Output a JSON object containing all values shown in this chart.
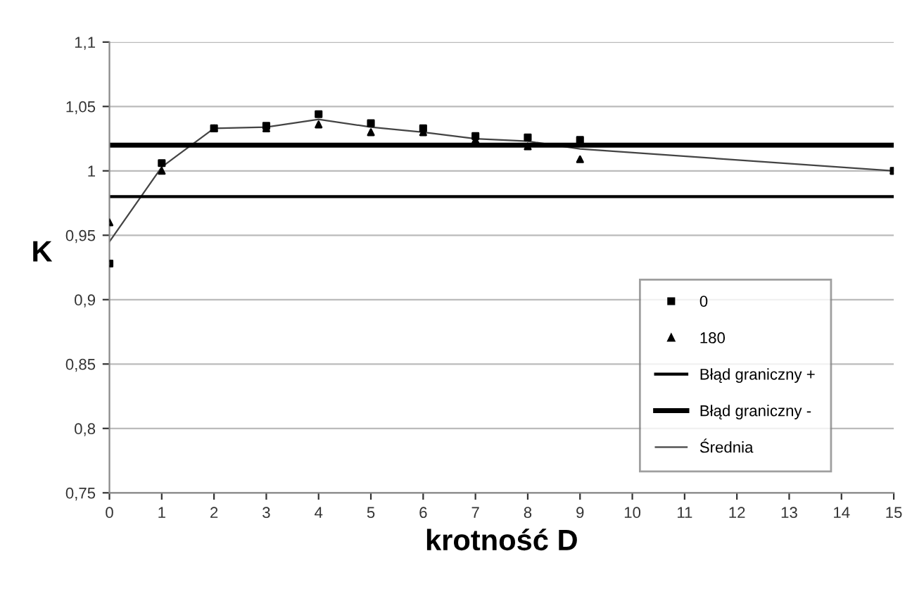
{
  "chart_data": {
    "type": "scatter",
    "xlabel": "krotność D",
    "ylabel": "K",
    "xlim": [
      0,
      15
    ],
    "xticks": [
      0,
      1,
      2,
      3,
      4,
      5,
      6,
      7,
      8,
      9,
      10,
      11,
      12,
      13,
      14,
      15
    ],
    "ylim": [
      0.75,
      1.1
    ],
    "yticks": [
      {
        "value": 0.75,
        "label": "0,75"
      },
      {
        "value": 0.8,
        "label": "0,8"
      },
      {
        "value": 0.85,
        "label": "0,85"
      },
      {
        "value": 0.9,
        "label": "0,9"
      },
      {
        "value": 0.95,
        "label": "0,95"
      },
      {
        "value": 1,
        "label": "1"
      },
      {
        "value": 1.05,
        "label": "1,05"
      },
      {
        "value": 1.1,
        "label": "1,1"
      }
    ],
    "grid": "y",
    "legend": "bottom right",
    "series": [
      {
        "name": "0",
        "marker": "square",
        "color": "#000000",
        "x": [
          0,
          1,
          2,
          3,
          4,
          5,
          6,
          7,
          8,
          9,
          15
        ],
        "values": [
          0.928,
          1.006,
          1.033,
          1.035,
          1.044,
          1.037,
          1.033,
          1.027,
          1.026,
          1.024,
          1.0
        ]
      },
      {
        "name": "180",
        "marker": "triangle",
        "color": "#000000",
        "x": [
          0,
          1,
          2,
          3,
          4,
          5,
          6,
          7,
          8,
          9,
          15
        ],
        "values": [
          0.96,
          1.0,
          1.033,
          1.033,
          1.036,
          1.03,
          1.03,
          1.024,
          1.019,
          1.009,
          1.0
        ]
      },
      {
        "name": "Średnia",
        "type": "line",
        "marker": "none",
        "color": "#444444",
        "x": [
          0,
          1,
          2,
          3,
          4,
          5,
          6,
          7,
          8,
          9,
          15
        ],
        "values": [
          0.945,
          1.003,
          1.033,
          1.034,
          1.04,
          1.034,
          1.03,
          1.025,
          1.023,
          1.017,
          1.0
        ]
      }
    ],
    "ref_lines": [
      {
        "axis": "y",
        "value": 0.98,
        "label": "Błąd graniczny +",
        "color": "#000000"
      },
      {
        "axis": "y",
        "value": 1.02,
        "label": "Błąd graniczny -",
        "color": "#000000"
      }
    ]
  }
}
